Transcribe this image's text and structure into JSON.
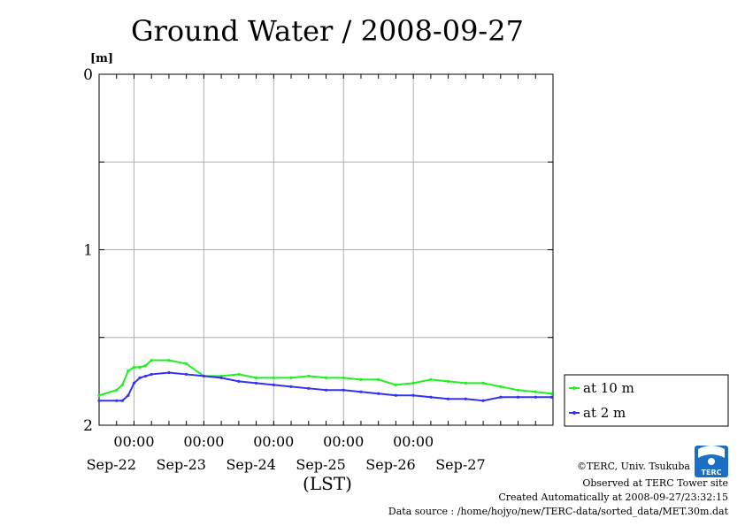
{
  "chart_data": {
    "type": "line",
    "title": "Ground Water / 2008-09-27",
    "ylabel": "[m]",
    "xlabel": "(LST)",
    "ylim": [
      2,
      0
    ],
    "y_inverted": true,
    "y_ticks": [
      "0",
      "1",
      "2"
    ],
    "x_time_ticks": [
      "00:00",
      "00:00",
      "00:00",
      "00:00",
      "00:00"
    ],
    "x_date_labels": [
      "Sep-22",
      "Sep-23",
      "Sep-24",
      "Sep-25",
      "Sep-26",
      "Sep-27"
    ],
    "grid": true,
    "legend_position": "lower-right-outside",
    "x": [
      "2008-09-21T12:00",
      "2008-09-21T18:00",
      "2008-09-21T20:00",
      "2008-09-21T22:00",
      "2008-09-22T00:00",
      "2008-09-22T02:00",
      "2008-09-22T04:00",
      "2008-09-22T06:00",
      "2008-09-22T12:00",
      "2008-09-22T18:00",
      "2008-09-23T00:00",
      "2008-09-23T06:00",
      "2008-09-23T12:00",
      "2008-09-23T18:00",
      "2008-09-24T00:00",
      "2008-09-24T06:00",
      "2008-09-24T12:00",
      "2008-09-24T18:00",
      "2008-09-25T00:00",
      "2008-09-25T06:00",
      "2008-09-25T12:00",
      "2008-09-25T18:00",
      "2008-09-26T00:00",
      "2008-09-26T06:00",
      "2008-09-26T12:00",
      "2008-09-26T18:00",
      "2008-09-27T00:00",
      "2008-09-27T06:00",
      "2008-09-27T12:00",
      "2008-09-27T18:00",
      "2008-09-27T23:30"
    ],
    "series": [
      {
        "name": "at 10 m",
        "color": "#22ee22",
        "values": [
          1.83,
          1.8,
          1.77,
          1.69,
          1.67,
          1.67,
          1.66,
          1.63,
          1.63,
          1.65,
          1.72,
          1.72,
          1.71,
          1.73,
          1.73,
          1.73,
          1.72,
          1.73,
          1.73,
          1.74,
          1.74,
          1.77,
          1.76,
          1.74,
          1.75,
          1.76,
          1.76,
          1.78,
          1.8,
          1.81,
          1.82
        ]
      },
      {
        "name": "at 2 m",
        "color": "#3333ee",
        "values": [
          1.86,
          1.86,
          1.86,
          1.83,
          1.76,
          1.73,
          1.72,
          1.71,
          1.7,
          1.71,
          1.72,
          1.73,
          1.75,
          1.76,
          1.77,
          1.78,
          1.79,
          1.8,
          1.8,
          1.81,
          1.82,
          1.83,
          1.83,
          1.84,
          1.85,
          1.85,
          1.86,
          1.84,
          1.84,
          1.84,
          1.84
        ]
      }
    ]
  },
  "footer": {
    "copyright": "©TERC, Univ. Tsukuba",
    "observed": "Observed at TERC Tower site",
    "created": "Created Automatically at 2008-09-27/23:32:15",
    "source": "Data source : /home/hojyo/new/TERC-data/sorted_data/MET.30m.dat"
  },
  "logo": {
    "text": "TERC",
    "color": "#1a6ec4"
  }
}
